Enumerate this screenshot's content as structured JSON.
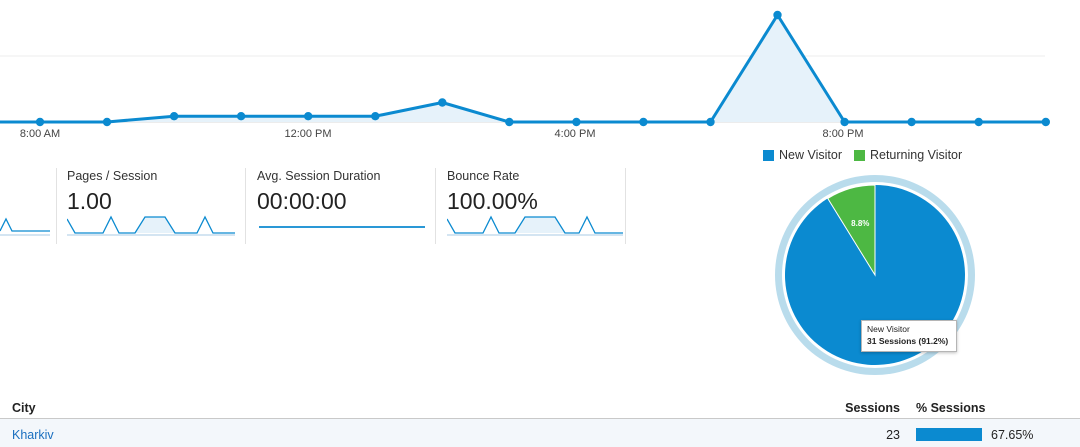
{
  "timeline": {
    "tick_labels": [
      "8:00 AM",
      "12:00 PM",
      "4:00 PM",
      "8:00 PM"
    ],
    "values": [
      0,
      0,
      0.3,
      0.3,
      0.3,
      0.3,
      1.0,
      0,
      0,
      0,
      0,
      5.5,
      0,
      0,
      0,
      0
    ],
    "line_color": "#0b8ad0",
    "fill_color": "#e6f2fa"
  },
  "legend": {
    "items": [
      {
        "label": "New Visitor",
        "color": "#0b8ad0"
      },
      {
        "label": "Returning Visitor",
        "color": "#4db843"
      }
    ]
  },
  "metrics": [
    {
      "label": "Pages / Session",
      "value": "1.00",
      "spark": "pattern"
    },
    {
      "label": "Avg. Session Duration",
      "value": "00:00:00",
      "spark": "flat"
    },
    {
      "label": "Bounce Rate",
      "value": "100.00%",
      "spark": "pattern"
    }
  ],
  "pie": {
    "slices": [
      {
        "name": "New Visitor",
        "percent": 91.2,
        "color": "#0b8ad0"
      },
      {
        "name": "Returning Visitor",
        "percent": 8.8,
        "color": "#4db843",
        "label": "8.8%"
      }
    ],
    "tooltip": {
      "title": "New Visitor",
      "detail": "31 Sessions (91.2%)"
    }
  },
  "table": {
    "columns": [
      "City",
      "Sessions",
      "% Sessions"
    ],
    "rows": [
      {
        "city": "Kharkiv",
        "sessions": "23",
        "percent_value": 67.65,
        "percent": "67.65%"
      }
    ]
  }
}
